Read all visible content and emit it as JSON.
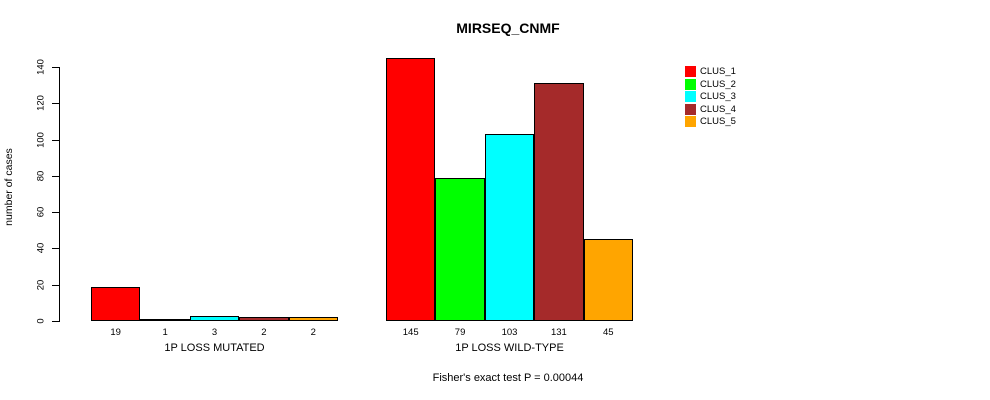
{
  "chart_data": {
    "type": "bar",
    "title": "MIRSEQ_CNMF",
    "ylabel": "number of cases",
    "ylim": [
      0,
      145
    ],
    "yticks": [
      0,
      20,
      40,
      60,
      80,
      100,
      120,
      140
    ],
    "grid": false,
    "legend_position": "right",
    "series": [
      {
        "name": "CLUS_1",
        "color": "#FF0000"
      },
      {
        "name": "CLUS_2",
        "color": "#00FF00"
      },
      {
        "name": "CLUS_3",
        "color": "#00FFFF"
      },
      {
        "name": "CLUS_4",
        "color": "#A52A2A"
      },
      {
        "name": "CLUS_5",
        "color": "#FFA500"
      }
    ],
    "groups": [
      {
        "label": "1P LOSS MUTATED",
        "values": [
          19,
          1,
          3,
          2,
          2
        ]
      },
      {
        "label": "1P LOSS WILD-TYPE",
        "values": [
          145,
          79,
          103,
          131,
          45
        ]
      }
    ],
    "annotation": "Fisher's exact test P = 0.00044"
  }
}
